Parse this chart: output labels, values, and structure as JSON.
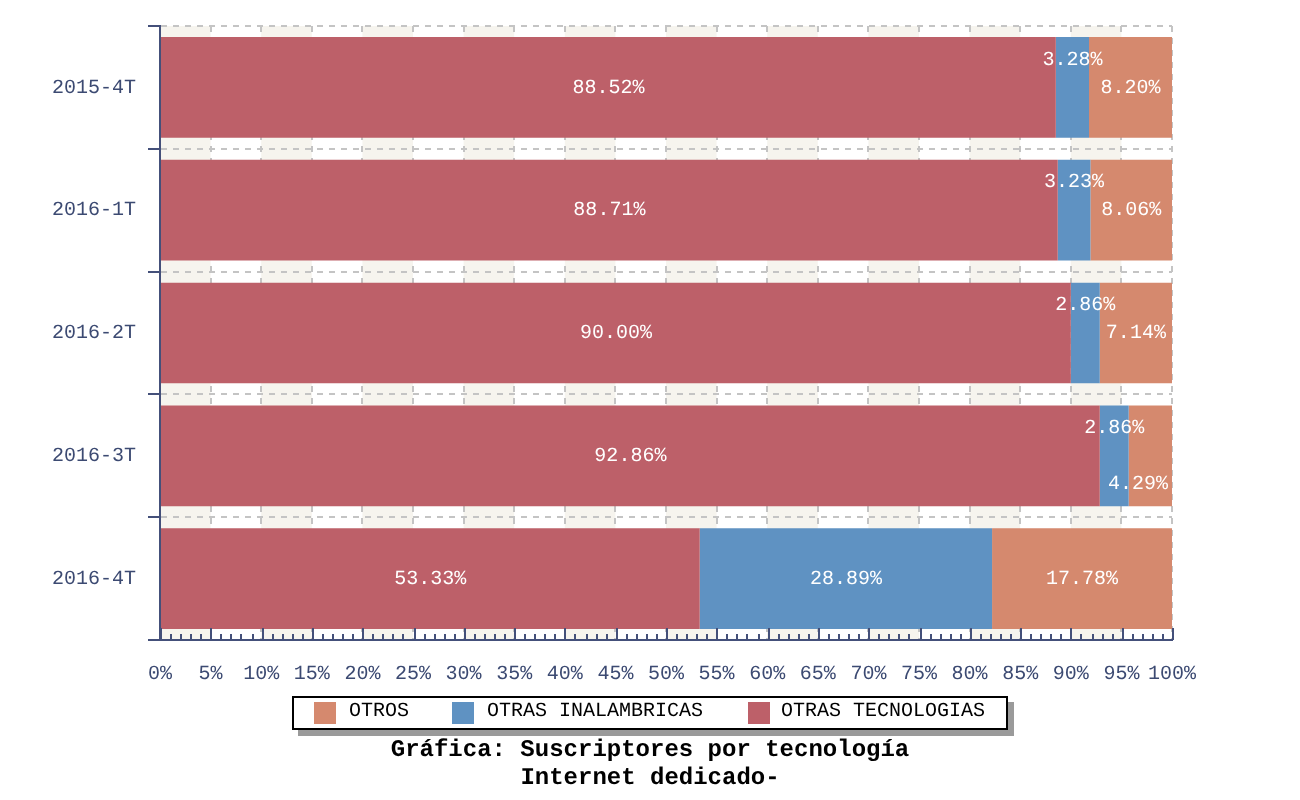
{
  "chart_data": {
    "type": "bar",
    "orientation": "horizontal",
    "stacked": true,
    "title": "Gráfica: Suscriptores por tecnología",
    "subtitle": "Internet dedicado-",
    "categories": [
      "2015-4T",
      "2016-1T",
      "2016-2T",
      "2016-3T",
      "2016-4T"
    ],
    "series": [
      {
        "name": "OTRAS TECNOLOGIAS",
        "color": "#bd6069",
        "values": [
          88.52,
          88.71,
          90.0,
          92.86,
          53.33
        ],
        "value_labels": [
          "88.52%",
          "88.71%",
          "90.00%",
          "92.86%",
          "53.33%"
        ]
      },
      {
        "name": "OTRAS INALAMBRICAS",
        "color": "#5f92c2",
        "values": [
          3.28,
          3.23,
          2.86,
          2.86,
          28.89
        ],
        "value_labels": [
          "3.28%",
          "3.23%",
          "2.86%",
          "2.86%",
          "28.89%"
        ]
      },
      {
        "name": "OTROS",
        "color": "#d5896e",
        "values": [
          8.2,
          8.06,
          7.14,
          4.29,
          17.78
        ],
        "value_labels": [
          "8.20%",
          "8.06%",
          "7.14%",
          "4.29%",
          "17.78%"
        ]
      }
    ],
    "xlim": [
      0,
      100
    ],
    "xticks": [
      {
        "value": 0,
        "label": "0%"
      },
      {
        "value": 1,
        "label": null
      },
      {
        "value": 2,
        "label": null
      },
      {
        "value": 3,
        "label": null
      },
      {
        "value": 4,
        "label": null
      },
      {
        "value": 5,
        "label": "5%"
      },
      {
        "value": 6,
        "label": null
      },
      {
        "value": 7,
        "label": null
      },
      {
        "value": 8,
        "label": null
      },
      {
        "value": 9,
        "label": null
      },
      {
        "value": 10,
        "label": "10%"
      },
      {
        "value": 11,
        "label": null
      },
      {
        "value": 12,
        "label": null
      },
      {
        "value": 13,
        "label": null
      },
      {
        "value": 14,
        "label": null
      },
      {
        "value": 15,
        "label": "15%"
      },
      {
        "value": 16,
        "label": null
      },
      {
        "value": 17,
        "label": null
      },
      {
        "value": 18,
        "label": null
      },
      {
        "value": 19,
        "label": null
      },
      {
        "value": 20,
        "label": "20%"
      },
      {
        "value": 21,
        "label": null
      },
      {
        "value": 22,
        "label": null
      },
      {
        "value": 23,
        "label": null
      },
      {
        "value": 24,
        "label": null
      },
      {
        "value": 25,
        "label": "25%"
      },
      {
        "value": 26,
        "label": null
      },
      {
        "value": 27,
        "label": null
      },
      {
        "value": 28,
        "label": null
      },
      {
        "value": 29,
        "label": null
      },
      {
        "value": 30,
        "label": "30%"
      },
      {
        "value": 31,
        "label": null
      },
      {
        "value": 32,
        "label": null
      },
      {
        "value": 33,
        "label": null
      },
      {
        "value": 34,
        "label": null
      },
      {
        "value": 35,
        "label": "35%"
      },
      {
        "value": 36,
        "label": null
      },
      {
        "value": 37,
        "label": null
      },
      {
        "value": 38,
        "label": null
      },
      {
        "value": 39,
        "label": null
      },
      {
        "value": 40,
        "label": "40%"
      },
      {
        "value": 41,
        "label": null
      },
      {
        "value": 42,
        "label": null
      },
      {
        "value": 43,
        "label": null
      },
      {
        "value": 44,
        "label": null
      },
      {
        "value": 45,
        "label": "45%"
      },
      {
        "value": 46,
        "label": null
      },
      {
        "value": 47,
        "label": null
      },
      {
        "value": 48,
        "label": null
      },
      {
        "value": 49,
        "label": null
      },
      {
        "value": 50,
        "label": "50%"
      },
      {
        "value": 51,
        "label": null
      },
      {
        "value": 52,
        "label": null
      },
      {
        "value": 53,
        "label": null
      },
      {
        "value": 54,
        "label": null
      },
      {
        "value": 55,
        "label": "55%"
      },
      {
        "value": 56,
        "label": null
      },
      {
        "value": 57,
        "label": null
      },
      {
        "value": 58,
        "label": null
      },
      {
        "value": 59,
        "label": null
      },
      {
        "value": 60,
        "label": "60%"
      },
      {
        "value": 61,
        "label": null
      },
      {
        "value": 62,
        "label": null
      },
      {
        "value": 63,
        "label": null
      },
      {
        "value": 64,
        "label": null
      },
      {
        "value": 65,
        "label": "65%"
      },
      {
        "value": 66,
        "label": null
      },
      {
        "value": 67,
        "label": null
      },
      {
        "value": 68,
        "label": null
      },
      {
        "value": 69,
        "label": null
      },
      {
        "value": 70,
        "label": "70%"
      },
      {
        "value": 71,
        "label": null
      },
      {
        "value": 72,
        "label": null
      },
      {
        "value": 73,
        "label": null
      },
      {
        "value": 74,
        "label": null
      },
      {
        "value": 75,
        "label": "75%"
      },
      {
        "value": 76,
        "label": null
      },
      {
        "value": 77,
        "label": null
      },
      {
        "value": 78,
        "label": null
      },
      {
        "value": 79,
        "label": null
      },
      {
        "value": 80,
        "label": "80%"
      },
      {
        "value": 81,
        "label": null
      },
      {
        "value": 82,
        "label": null
      },
      {
        "value": 83,
        "label": null
      },
      {
        "value": 84,
        "label": null
      },
      {
        "value": 85,
        "label": "85%"
      },
      {
        "value": 86,
        "label": null
      },
      {
        "value": 87,
        "label": null
      },
      {
        "value": 88,
        "label": null
      },
      {
        "value": 89,
        "label": null
      },
      {
        "value": 90,
        "label": "90%"
      },
      {
        "value": 91,
        "label": null
      },
      {
        "value": 92,
        "label": null
      },
      {
        "value": 93,
        "label": null
      },
      {
        "value": 94,
        "label": null
      },
      {
        "value": 95,
        "label": "95%"
      },
      {
        "value": 96,
        "label": null
      },
      {
        "value": 97,
        "label": null
      },
      {
        "value": 98,
        "label": null
      },
      {
        "value": 99,
        "label": null
      },
      {
        "value": 100,
        "label": "100%"
      }
    ],
    "grid": true,
    "legend": "bottom"
  }
}
